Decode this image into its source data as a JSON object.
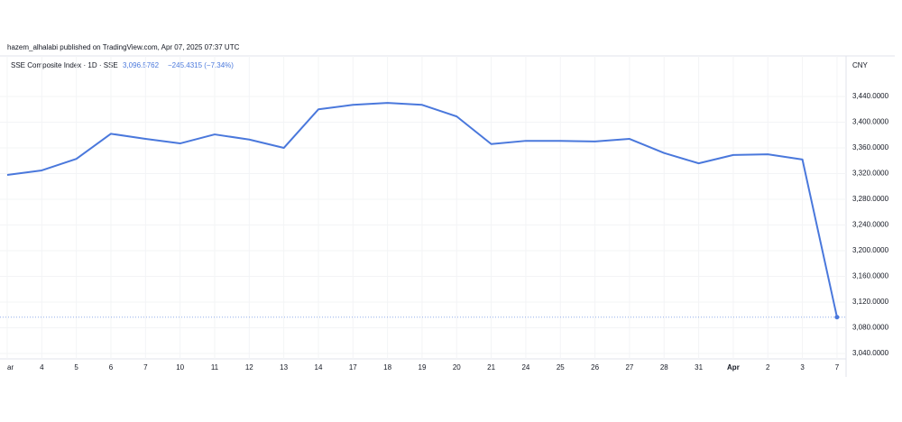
{
  "chart_data": {
    "type": "line",
    "attribution": "hazem_alhalabi published on TradingView.com, Apr 07, 2025 07:37 UTC",
    "legend_title": "SSE Composite Index · 1D · SSE",
    "legend_price": "3,096.5762",
    "legend_change": "−245.4315 (−7.34%)",
    "y_unit": "CNY",
    "categories": [
      "ar",
      "4",
      "5",
      "6",
      "7",
      "10",
      "11",
      "12",
      "13",
      "14",
      "17",
      "18",
      "19",
      "20",
      "21",
      "24",
      "25",
      "26",
      "27",
      "28",
      "31",
      "Apr",
      "2",
      "3",
      "7"
    ],
    "series": [
      {
        "color": "#4a78dc",
        "values": [
          3318,
          3325,
          3343,
          3382,
          3374,
          3367,
          3381,
          3373,
          3360,
          3420,
          3427,
          3430,
          3427,
          3409,
          3366,
          3371,
          3371,
          3370,
          3374,
          3352,
          3336,
          3349,
          3350,
          3342,
          3096.5762
        ]
      }
    ],
    "ylim": [
      3031.6,
      3503.2
    ],
    "yticks": [
      {
        "value": 3040,
        "label": "3,040.0000"
      },
      {
        "value": 3080,
        "label": "3,080.0000"
      },
      {
        "value": 3120,
        "label": "3,120.0000"
      },
      {
        "value": 3160,
        "label": "3,160.0000"
      },
      {
        "value": 3200,
        "label": "3,200.0000"
      },
      {
        "value": 3240,
        "label": "3,240.0000"
      },
      {
        "value": 3280,
        "label": "3,280.0000"
      },
      {
        "value": 3320,
        "label": "3,320.0000"
      },
      {
        "value": 3360,
        "label": "3,360.0000"
      },
      {
        "value": 3400,
        "label": "3,400.0000"
      },
      {
        "value": 3440,
        "label": "3,440.0000"
      }
    ],
    "grid": true,
    "last_price_line": true
  }
}
